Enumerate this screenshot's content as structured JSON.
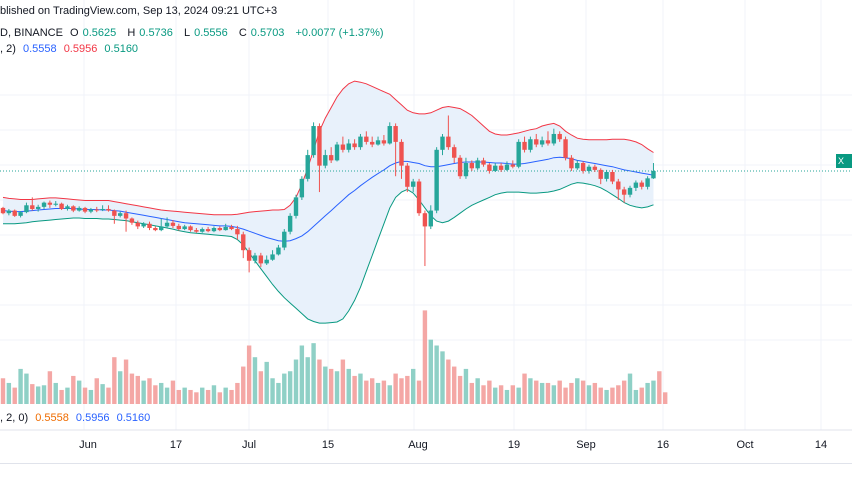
{
  "header": {
    "line1": "blished on TradingView.com, Sep 13, 2024 09:21 UTC+3",
    "line2_symbol": "D, BINANCE",
    "o_label": "O",
    "o_val": "0.5625",
    "h_label": "H",
    "h_val": "0.5736",
    "l_label": "L",
    "l_val": "0.5556",
    "c_label": "C",
    "c_val": "0.5703",
    "change": "+0.0077 (+1.37%)",
    "bb_prefix": ", 2)",
    "bb_basis": "0.5558",
    "bb_upper": "0.5956",
    "bb_lower": "0.5160"
  },
  "volume_legend": {
    "prefix": ", 2, 0)",
    "basis": "0.5558",
    "upper": "0.5956",
    "lower": "0.5160"
  },
  "price_tag": "X",
  "colors": {
    "up": "#26a69a",
    "down": "#ef5350",
    "vol_up": "#8fd0c6",
    "vol_down": "#f4a7a5",
    "upper_band": "#f23645",
    "basis": "#2962ff",
    "lower_band": "#089981",
    "band_fill": "#e8f1fb",
    "grid": "#f0f3fa"
  },
  "chart_data": {
    "type": "candlestick",
    "x_ticks": [
      "Jun",
      "17",
      "Jul",
      "15",
      "Aug",
      "19",
      "Sep",
      "16",
      "Oct",
      "14"
    ],
    "candles": [
      [
        5.0,
        4.9,
        5.02,
        4.88
      ],
      [
        4.9,
        4.95,
        4.98,
        4.86
      ],
      [
        4.95,
        4.85,
        4.97,
        4.83
      ],
      [
        4.85,
        4.92,
        4.94,
        4.82
      ],
      [
        4.92,
        5.05,
        5.1,
        4.9
      ],
      [
        5.05,
        4.98,
        5.2,
        4.95
      ],
      [
        4.98,
        5.02,
        5.06,
        4.93
      ],
      [
        5.02,
        5.1,
        5.12,
        4.98
      ],
      [
        5.1,
        5.06,
        5.14,
        5.0
      ],
      [
        5.06,
        5.08,
        5.13,
        5.03
      ],
      [
        5.08,
        4.98,
        5.1,
        4.96
      ],
      [
        4.98,
        5.03,
        5.06,
        4.95
      ],
      [
        5.03,
        4.95,
        5.05,
        4.92
      ],
      [
        4.95,
        5.0,
        5.03,
        4.93
      ],
      [
        5.0,
        4.93,
        5.02,
        4.9
      ],
      [
        4.93,
        4.97,
        5.0,
        4.9
      ],
      [
        4.97,
        4.96,
        5.02,
        4.92
      ],
      [
        4.96,
        4.98,
        5.05,
        4.94
      ],
      [
        4.98,
        4.95,
        5.05,
        4.93
      ],
      [
        4.95,
        4.85,
        4.97,
        4.7
      ],
      [
        4.85,
        4.9,
        4.93,
        4.82
      ],
      [
        4.9,
        4.8,
        4.95,
        4.55
      ],
      [
        4.8,
        4.72,
        4.82,
        4.68
      ],
      [
        4.72,
        4.65,
        4.76,
        4.6
      ],
      [
        4.65,
        4.7,
        4.73,
        4.62
      ],
      [
        4.7,
        4.62,
        4.74,
        4.58
      ],
      [
        4.62,
        4.58,
        4.65,
        4.56
      ],
      [
        4.58,
        4.65,
        4.8,
        4.56
      ],
      [
        4.65,
        4.72,
        4.82,
        4.62
      ],
      [
        4.72,
        4.66,
        4.77,
        4.62
      ],
      [
        4.66,
        4.6,
        4.7,
        4.57
      ],
      [
        4.6,
        4.65,
        4.68,
        4.58
      ],
      [
        4.65,
        4.58,
        4.67,
        4.55
      ],
      [
        4.58,
        4.55,
        4.62,
        4.53
      ],
      [
        4.55,
        4.6,
        4.63,
        4.53
      ],
      [
        4.6,
        4.56,
        4.64,
        4.54
      ],
      [
        4.56,
        4.62,
        4.65,
        4.54
      ],
      [
        4.62,
        4.58,
        4.65,
        4.56
      ],
      [
        4.58,
        4.64,
        4.7,
        4.57
      ],
      [
        4.64,
        4.6,
        4.68,
        4.58
      ],
      [
        4.6,
        4.5,
        4.66,
        4.4
      ],
      [
        4.5,
        4.2,
        4.55,
        4.05
      ],
      [
        4.2,
        4.0,
        4.25,
        3.78
      ],
      [
        4.0,
        4.1,
        4.15,
        3.95
      ],
      [
        4.1,
        3.95,
        4.15,
        3.88
      ],
      [
        3.95,
        4.02,
        4.1,
        3.92
      ],
      [
        4.02,
        4.12,
        4.2,
        4.0
      ],
      [
        4.12,
        4.25,
        4.3,
        4.1
      ],
      [
        4.25,
        4.55,
        4.6,
        4.2
      ],
      [
        4.55,
        4.85,
        4.9,
        4.5
      ],
      [
        4.85,
        5.2,
        5.25,
        4.8
      ],
      [
        5.2,
        5.55,
        5.6,
        5.15
      ],
      [
        5.55,
        6.0,
        6.1,
        5.5
      ],
      [
        6.0,
        6.55,
        6.62,
        5.95
      ],
      [
        6.55,
        5.8,
        6.6,
        5.3
      ],
      [
        5.8,
        6.0,
        6.1,
        5.75
      ],
      [
        6.0,
        5.9,
        6.15,
        5.85
      ],
      [
        5.9,
        6.2,
        6.25,
        5.88
      ],
      [
        6.2,
        6.1,
        6.35,
        6.05
      ],
      [
        6.1,
        6.22,
        6.3,
        6.05
      ],
      [
        6.22,
        6.15,
        6.3,
        6.1
      ],
      [
        6.15,
        6.35,
        6.4,
        6.1
      ],
      [
        6.35,
        6.25,
        6.45,
        6.2
      ],
      [
        6.25,
        6.2,
        6.35,
        6.15
      ],
      [
        6.2,
        6.28,
        6.35,
        6.18
      ],
      [
        6.28,
        6.22,
        6.38,
        6.18
      ],
      [
        6.22,
        6.55,
        6.62,
        6.2
      ],
      [
        6.55,
        6.25,
        6.6,
        5.6
      ],
      [
        6.25,
        5.8,
        6.3,
        5.55
      ],
      [
        5.8,
        5.4,
        5.85,
        5.3
      ],
      [
        5.4,
        5.5,
        5.55,
        5.3
      ],
      [
        5.5,
        4.9,
        5.55,
        4.85
      ],
      [
        4.9,
        4.65,
        4.95,
        3.9
      ],
      [
        4.65,
        4.95,
        5.05,
        4.6
      ],
      [
        4.95,
        6.1,
        6.15,
        4.9
      ],
      [
        6.1,
        6.35,
        6.4,
        6.0
      ],
      [
        6.35,
        6.15,
        6.75,
        6.1
      ],
      [
        6.15,
        5.95,
        6.2,
        5.85
      ],
      [
        5.95,
        5.6,
        6.0,
        5.55
      ],
      [
        5.6,
        5.85,
        5.95,
        5.55
      ],
      [
        5.85,
        5.75,
        5.9,
        5.7
      ],
      [
        5.75,
        5.9,
        5.95,
        5.72
      ],
      [
        5.9,
        5.82,
        5.95,
        5.78
      ],
      [
        5.82,
        5.7,
        5.85,
        5.65
      ],
      [
        5.7,
        5.8,
        5.85,
        5.68
      ],
      [
        5.8,
        5.72,
        5.85,
        5.68
      ],
      [
        5.72,
        5.82,
        5.88,
        5.7
      ],
      [
        5.82,
        5.78,
        5.9,
        5.75
      ],
      [
        5.78,
        6.25,
        6.3,
        5.75
      ],
      [
        6.25,
        6.1,
        6.35,
        6.05
      ],
      [
        6.1,
        6.3,
        6.35,
        6.05
      ],
      [
        6.3,
        6.2,
        6.4,
        6.15
      ],
      [
        6.2,
        6.28,
        6.35,
        6.15
      ],
      [
        6.28,
        6.22,
        6.45,
        6.18
      ],
      [
        6.22,
        6.4,
        6.5,
        6.18
      ],
      [
        6.4,
        6.3,
        6.45,
        6.25
      ],
      [
        6.3,
        5.95,
        6.35,
        5.9
      ],
      [
        5.95,
        5.75,
        6.0,
        5.7
      ],
      [
        5.75,
        5.85,
        5.9,
        5.72
      ],
      [
        5.85,
        5.7,
        5.88,
        5.65
      ],
      [
        5.7,
        5.78,
        5.82,
        5.65
      ],
      [
        5.78,
        5.72,
        5.82,
        5.68
      ],
      [
        5.72,
        5.55,
        5.75,
        5.45
      ],
      [
        5.55,
        5.68,
        5.72,
        5.5
      ],
      [
        5.68,
        5.5,
        5.72,
        5.45
      ],
      [
        5.5,
        5.35,
        5.55,
        5.15
      ],
      [
        5.35,
        5.25,
        5.4,
        5.1
      ],
      [
        5.25,
        5.38,
        5.42,
        5.2
      ],
      [
        5.38,
        5.48,
        5.52,
        5.32
      ],
      [
        5.48,
        5.4,
        5.52,
        5.35
      ],
      [
        5.4,
        5.56,
        5.6,
        5.35
      ],
      [
        5.56,
        5.7,
        5.85,
        5.55
      ]
    ],
    "bb_upper": [
      5.2,
      5.18,
      5.17,
      5.16,
      5.16,
      5.16,
      5.17,
      5.18,
      5.19,
      5.19,
      5.18,
      5.17,
      5.16,
      5.15,
      5.14,
      5.14,
      5.14,
      5.14,
      5.14,
      5.12,
      5.1,
      5.08,
      5.06,
      5.04,
      5.02,
      5.0,
      4.98,
      4.96,
      4.95,
      4.94,
      4.93,
      4.92,
      4.91,
      4.9,
      4.89,
      4.88,
      4.87,
      4.87,
      4.87,
      4.87,
      4.88,
      4.9,
      4.92,
      4.93,
      4.94,
      4.95,
      4.96,
      4.96,
      4.97,
      5.05,
      5.2,
      5.45,
      5.75,
      6.1,
      6.45,
      6.7,
      6.9,
      7.1,
      7.25,
      7.35,
      7.4,
      7.38,
      7.35,
      7.3,
      7.25,
      7.2,
      7.15,
      7.05,
      6.95,
      6.85,
      6.8,
      6.78,
      6.78,
      6.8,
      6.85,
      6.9,
      6.92,
      6.9,
      6.88,
      6.82,
      6.75,
      6.65,
      6.55,
      6.45,
      6.4,
      6.38,
      6.38,
      6.4,
      6.42,
      6.45,
      6.48,
      6.5,
      6.55,
      6.58,
      6.6,
      6.55,
      6.45,
      6.38,
      6.32,
      6.3,
      6.29,
      6.29,
      6.29,
      6.29,
      6.3,
      6.3,
      6.3,
      6.28,
      6.25,
      6.2,
      6.12,
      6.05
    ],
    "bb_basis": [
      4.95,
      4.94,
      4.93,
      4.93,
      4.94,
      4.95,
      4.96,
      4.97,
      4.98,
      4.99,
      4.99,
      4.99,
      4.99,
      4.98,
      4.97,
      4.97,
      4.97,
      4.96,
      4.96,
      4.95,
      4.94,
      4.92,
      4.9,
      4.88,
      4.86,
      4.84,
      4.82,
      4.8,
      4.78,
      4.76,
      4.74,
      4.72,
      4.71,
      4.7,
      4.69,
      4.68,
      4.67,
      4.66,
      4.66,
      4.65,
      4.63,
      4.6,
      4.56,
      4.52,
      4.48,
      4.44,
      4.41,
      4.38,
      4.37,
      4.38,
      4.42,
      4.47,
      4.55,
      4.65,
      4.75,
      4.85,
      4.95,
      5.05,
      5.15,
      5.25,
      5.33,
      5.42,
      5.5,
      5.58,
      5.65,
      5.72,
      5.8,
      5.85,
      5.88,
      5.88,
      5.86,
      5.84,
      5.8,
      5.78,
      5.78,
      5.8,
      5.82,
      5.84,
      5.86,
      5.87,
      5.87,
      5.87,
      5.87,
      5.86,
      5.85,
      5.85,
      5.84,
      5.83,
      5.83,
      5.84,
      5.86,
      5.88,
      5.9,
      5.92,
      5.95,
      5.96,
      5.95,
      5.93,
      5.9,
      5.88,
      5.86,
      5.84,
      5.82,
      5.8,
      5.78,
      5.75,
      5.72,
      5.7,
      5.68,
      5.66,
      5.64,
      5.62
    ],
    "bb_lower": [
      4.7,
      4.7,
      4.7,
      4.71,
      4.72,
      4.74,
      4.75,
      4.76,
      4.77,
      4.78,
      4.79,
      4.8,
      4.81,
      4.81,
      4.8,
      4.8,
      4.8,
      4.79,
      4.79,
      4.78,
      4.77,
      4.76,
      4.74,
      4.72,
      4.7,
      4.68,
      4.66,
      4.64,
      4.62,
      4.6,
      4.57,
      4.55,
      4.53,
      4.52,
      4.51,
      4.5,
      4.49,
      4.48,
      4.47,
      4.46,
      4.4,
      4.3,
      4.15,
      4.0,
      3.85,
      3.7,
      3.55,
      3.42,
      3.3,
      3.2,
      3.1,
      3.0,
      2.9,
      2.85,
      2.82,
      2.82,
      2.83,
      2.84,
      2.9,
      3.05,
      3.25,
      3.5,
      3.8,
      4.1,
      4.4,
      4.7,
      5.0,
      5.2,
      5.3,
      5.35,
      5.28,
      5.15,
      5.0,
      4.85,
      4.75,
      4.72,
      4.75,
      4.82,
      4.9,
      4.98,
      5.05,
      5.1,
      5.15,
      5.2,
      5.25,
      5.28,
      5.3,
      5.3,
      5.3,
      5.29,
      5.28,
      5.28,
      5.29,
      5.3,
      5.32,
      5.35,
      5.4,
      5.45,
      5.48,
      5.47,
      5.45,
      5.42,
      5.38,
      5.32,
      5.25,
      5.18,
      5.1,
      5.05,
      5.02,
      5.0,
      5.02,
      5.06
    ],
    "volume": [
      22,
      18,
      14,
      30,
      26,
      17,
      15,
      16,
      28,
      18,
      12,
      14,
      24,
      20,
      14,
      12,
      22,
      17,
      14,
      40,
      28,
      38,
      26,
      24,
      20,
      22,
      16,
      18,
      14,
      20,
      12,
      14,
      12,
      10,
      14,
      12,
      16,
      10,
      14,
      12,
      18,
      32,
      50,
      40,
      28,
      36,
      22,
      18,
      26,
      28,
      38,
      50,
      40,
      52,
      38,
      32,
      30,
      28,
      38,
      30,
      24,
      26,
      20,
      22,
      18,
      20,
      16,
      26,
      22,
      24,
      30,
      20,
      80,
      55,
      50,
      45,
      38,
      32,
      24,
      30,
      18,
      22,
      16,
      20,
      14,
      16,
      12,
      16,
      14,
      26,
      22,
      20,
      18,
      18,
      16,
      20,
      14,
      18,
      22,
      20,
      16,
      18,
      14,
      12,
      14,
      16,
      20,
      26,
      12,
      14,
      18,
      20,
      28,
      10
    ]
  }
}
